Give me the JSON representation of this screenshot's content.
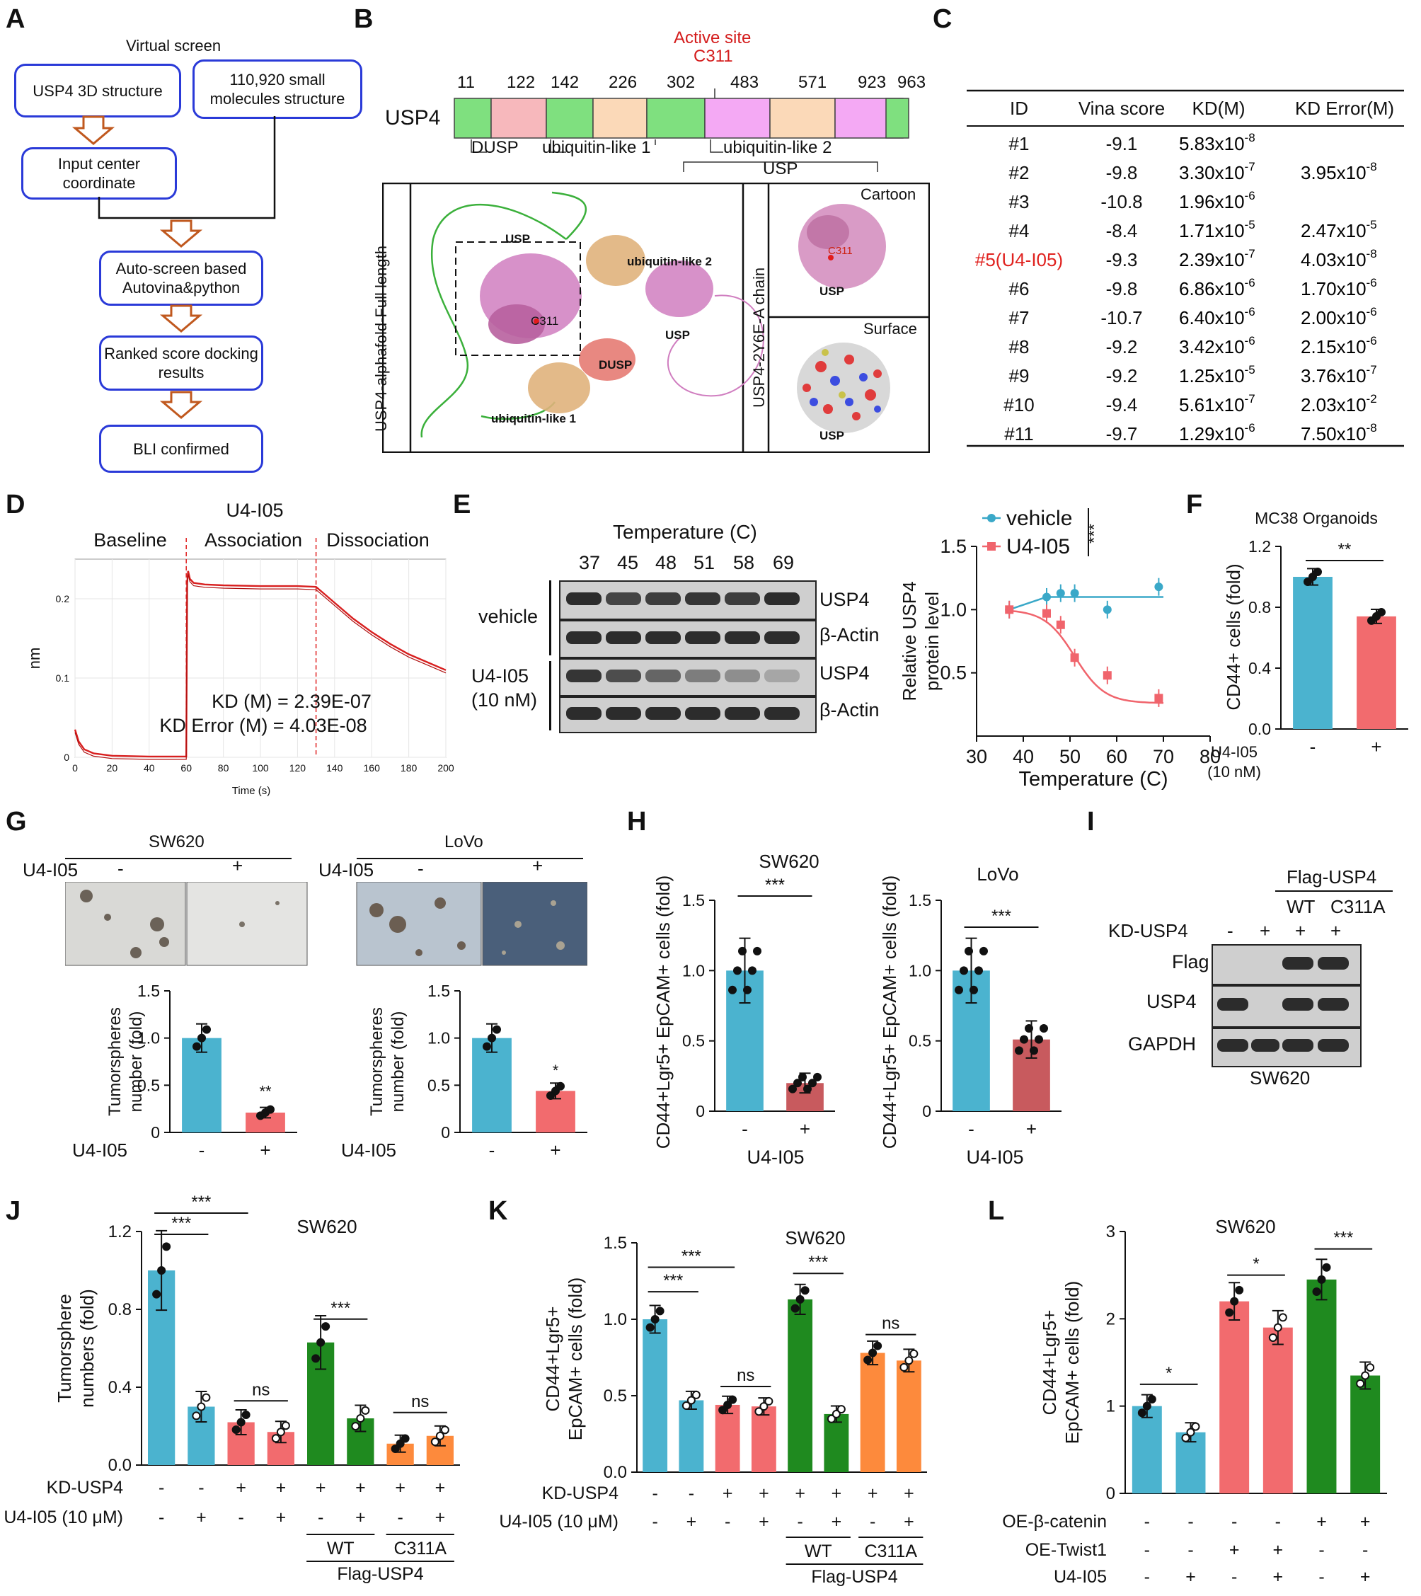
{
  "panels": {
    "A": "A",
    "B": "B",
    "C": "C",
    "D": "D",
    "E": "E",
    "F": "F",
    "G": "G",
    "H": "H",
    "I": "I",
    "J": "J",
    "K": "K",
    "L": "L"
  },
  "panelA": {
    "title": "Virtual screen",
    "box1": "USP4 3D structure",
    "box2": "110,920 small molecules structure",
    "box3": "Input center coordinate",
    "box4": "Auto-screen based Autovina&python",
    "box5": "Ranked score docking results",
    "box6": "BLI confirmed"
  },
  "panelB": {
    "active_site": "Active site",
    "active_res": "C311",
    "protein": "USP4",
    "positions": [
      "11",
      "122",
      "142",
      "226",
      "302",
      "483",
      "571",
      "923",
      "963"
    ],
    "dom_dusp": "DUSP",
    "dom_ubl1": "ubiquitin-like 1",
    "dom_ubl2": "ubiquitin-like 2",
    "dom_usp": "USP",
    "left_vert": "USP4-alphafold-Full length",
    "right_vert": "USP4-2Y6E-A chain",
    "struct_labels": {
      "usp": "USP",
      "ubl2": "ubiquitin-like 2",
      "usp2": "USP",
      "c311": "C311",
      "dusp": "DUSP",
      "ubl1": "ubiquitin-like 1"
    },
    "cartoon": "Cartoon",
    "surface": "Surface",
    "usp_small": "USP",
    "c311_small": "C311"
  },
  "panelC": {
    "headers": [
      "ID",
      "Vina score",
      "KD(M)",
      "KD Error(M)"
    ],
    "rows": [
      {
        "id": "#1",
        "vina": "-9.1",
        "kd": "5.83x10",
        "kd_exp": "-8",
        "err": "",
        "err_exp": ""
      },
      {
        "id": "#2",
        "vina": "-9.8",
        "kd": "3.30x10",
        "kd_exp": "-7",
        "err": "3.95x10",
        "err_exp": "-8"
      },
      {
        "id": "#3",
        "vina": "-10.8",
        "kd": "1.96x10",
        "kd_exp": "-6",
        "err": "",
        "err_exp": ""
      },
      {
        "id": "#4",
        "vina": "-8.4",
        "kd": "1.71x10",
        "kd_exp": "-5",
        "err": "2.47x10",
        "err_exp": "-5"
      },
      {
        "id": "#5(U4-I05)",
        "vina": "-9.3",
        "kd": "2.39x10",
        "kd_exp": "-7",
        "err": "4.03x10",
        "err_exp": "-8"
      },
      {
        "id": "#6",
        "vina": "-9.8",
        "kd": "6.86x10",
        "kd_exp": "-6",
        "err": "1.70x10",
        "err_exp": "-6"
      },
      {
        "id": "#7",
        "vina": "-10.7",
        "kd": "6.40x10",
        "kd_exp": "-6",
        "err": "2.00x10",
        "err_exp": "-6"
      },
      {
        "id": "#8",
        "vina": "-9.2",
        "kd": "3.42x10",
        "kd_exp": "-6",
        "err": "2.15x10",
        "err_exp": "-6"
      },
      {
        "id": "#9",
        "vina": "-9.2",
        "kd": "1.25x10",
        "kd_exp": "-5",
        "err": "3.76x10",
        "err_exp": "-7"
      },
      {
        "id": "#10",
        "vina": "-9.4",
        "kd": "5.61x10",
        "kd_exp": "-7",
        "err": "2.03x10",
        "err_exp": "-2"
      },
      {
        "id": "#11",
        "vina": "-9.7",
        "kd": "1.29x10",
        "kd_exp": "-6",
        "err": "7.50x10",
        "err_exp": "-8"
      }
    ]
  },
  "panelE": {
    "temp_title": "Temperature (C)",
    "temps": [
      "37",
      "45",
      "48",
      "51",
      "58",
      "69"
    ],
    "vehicle": "vehicle",
    "drug": "U4-I05",
    "drug_dose": "(10 nM)",
    "usp4": "USP4",
    "actin": "β-Actin"
  },
  "panelG": {
    "sw620": "SW620",
    "lovo": "LoVo",
    "treat": "U4-I05",
    "minus": "-",
    "plus": "+"
  },
  "panelI": {
    "flag_usp4": "Flag-USP4",
    "wt": "WT",
    "c311a": "C311A",
    "kd_usp4": "KD-USP4",
    "lanes": [
      "-",
      "+",
      "+",
      "+"
    ],
    "flag": "Flag",
    "usp4": "USP4",
    "gapdh": "GAPDH",
    "cell": "SW620"
  },
  "chart_data": [
    {
      "panel": "D",
      "type": "line",
      "title": "U4-I05",
      "phases": [
        "Baseline",
        "Association",
        "Dissociation"
      ],
      "xlabel": "Time (s)",
      "ylabel": "nm",
      "xlim": [
        0,
        200
      ],
      "ylim": [
        0,
        0.25
      ],
      "xticks": [
        0,
        20,
        40,
        60,
        80,
        100,
        120,
        140,
        160,
        180,
        200
      ],
      "yticks": [
        0,
        0.1,
        0.2
      ],
      "ytick_labels": [
        "0",
        "0.1",
        "0.2"
      ],
      "annotation1": "KD (M) = 2.39E-07",
      "annotation2": "KD Error (M) = 4.03E-08",
      "x": [
        0,
        2,
        5,
        10,
        20,
        40,
        60,
        60.5,
        61,
        62,
        64,
        70,
        80,
        100,
        120,
        130,
        135,
        140,
        150,
        160,
        170,
        180,
        190,
        200
      ],
      "y": [
        0.035,
        0.02,
        0.01,
        0.005,
        0.002,
        0.001,
        0.001,
        0.22,
        0.235,
        0.225,
        0.22,
        0.218,
        0.217,
        0.216,
        0.216,
        0.215,
        0.205,
        0.195,
        0.175,
        0.158,
        0.143,
        0.13,
        0.12,
        0.11
      ]
    },
    {
      "panel": "E",
      "type": "scatter",
      "xlabel": "Temperature (C)",
      "ylabel": "Relative USP4 protein level",
      "xlim": [
        30,
        80
      ],
      "ylim": [
        0,
        1.5
      ],
      "xticks": [
        30,
        40,
        50,
        60,
        70,
        80
      ],
      "yticks": [
        0.5,
        1.0,
        1.5
      ],
      "ytick_labels": [
        "0.5",
        "1.0",
        "1.5"
      ],
      "sig": "***",
      "series": [
        {
          "name": "vehicle",
          "color": "#3aa8c8",
          "x": [
            37,
            45,
            48,
            51,
            58,
            69
          ],
          "y": [
            1.0,
            1.1,
            1.13,
            1.13,
            1.0,
            1.18
          ]
        },
        {
          "name": "U4-I05",
          "color": "#f0646c",
          "x": [
            37,
            45,
            48,
            51,
            58,
            69
          ],
          "y": [
            1.0,
            0.97,
            0.88,
            0.62,
            0.48,
            0.3
          ]
        }
      ]
    },
    {
      "panel": "F",
      "type": "bar",
      "title": "MC38 Organoids",
      "ylabel": "CD44+ cells (fold)",
      "ylim": [
        0,
        1.2
      ],
      "yticks": [
        0,
        0.4,
        0.8,
        1.2
      ],
      "ytick_labels": [
        "0.0",
        "0.4",
        "0.8",
        "1.2"
      ],
      "categories": [
        "-",
        "+"
      ],
      "values": [
        1.0,
        0.74
      ],
      "colors": [
        "#4bb3cf",
        "#f26b6e"
      ],
      "sig": "**",
      "treat": "U4-I05",
      "dose": "(10 nM)"
    },
    {
      "panel": "G1",
      "type": "bar",
      "ylabel": "Tumorspheres number (fold)",
      "ylim": [
        0,
        1.5
      ],
      "yticks": [
        0,
        0.5,
        1.0,
        1.5
      ],
      "ytick_labels": [
        "0",
        "0.5",
        "1.0",
        "1.5"
      ],
      "categories": [
        "-",
        "+"
      ],
      "values": [
        1.0,
        0.21
      ],
      "colors": [
        "#4bb3cf",
        "#f26b6e"
      ],
      "sig": "**",
      "treat": "U4-I05"
    },
    {
      "panel": "G2",
      "type": "bar",
      "ylabel": "Tumorspheres number (fold)",
      "ylim": [
        0,
        1.5
      ],
      "yticks": [
        0,
        0.5,
        1.0,
        1.5
      ],
      "ytick_labels": [
        "0",
        "0.5",
        "1.0",
        "1.5"
      ],
      "categories": [
        "-",
        "+"
      ],
      "values": [
        1.0,
        0.44
      ],
      "colors": [
        "#4bb3cf",
        "#f26b6e"
      ],
      "sig": "*",
      "treat": "U4-I05"
    },
    {
      "panel": "H1",
      "type": "bar",
      "title": "SW620",
      "ylabel": "CD44+Lgr5+ EpCAM+ cells (fold)",
      "ylim": [
        0,
        1.5
      ],
      "yticks": [
        0,
        0.5,
        1.0,
        1.5
      ],
      "ytick_labels": [
        "0",
        "0.5",
        "1.0",
        "1.5"
      ],
      "categories": [
        "-",
        "+"
      ],
      "values": [
        1.0,
        0.2
      ],
      "colors": [
        "#4bb3cf",
        "#c85a5e"
      ],
      "sig": "***",
      "treat": "U4-I05"
    },
    {
      "panel": "H2",
      "type": "bar",
      "title": "LoVo",
      "ylabel": "CD44+Lgr5+ EpCAM+ cells (fold)",
      "ylim": [
        0,
        1.5
      ],
      "yticks": [
        0,
        0.5,
        1.0,
        1.5
      ],
      "ytick_labels": [
        "0",
        "0.5",
        "1.0",
        "1.5"
      ],
      "categories": [
        "-",
        "+"
      ],
      "values": [
        1.0,
        0.51
      ],
      "colors": [
        "#4bb3cf",
        "#c85a5e"
      ],
      "sig": "***",
      "treat": "U4-I05"
    },
    {
      "panel": "J",
      "type": "bar",
      "title": "SW620",
      "ylabel": "Tumorsphere numbers (fold)",
      "ylim": [
        0,
        1.2
      ],
      "yticks": [
        0,
        0.4,
        0.8,
        1.2
      ],
      "ytick_labels": [
        "0.0",
        "0.4",
        "0.8",
        "1.2"
      ],
      "values": [
        1.0,
        0.3,
        0.22,
        0.17,
        0.63,
        0.24,
        0.11,
        0.15
      ],
      "colors": [
        "#4bb3cf",
        "#4bb3cf",
        "#f26b6e",
        "#f26b6e",
        "#1f8a1f",
        "#1f8a1f",
        "#fd8a3c",
        "#fd8a3c"
      ],
      "sigs": [
        {
          "a": 0,
          "b": 1,
          "t": "***"
        },
        {
          "a": 0,
          "b": 2,
          "t": "***"
        },
        {
          "a": 2,
          "b": 3,
          "t": "ns"
        },
        {
          "a": 4,
          "b": 5,
          "t": "***"
        },
        {
          "a": 6,
          "b": 7,
          "t": "ns"
        }
      ],
      "row1_label": "KD-USP4",
      "row1": [
        "-",
        "-",
        "+",
        "+",
        "+",
        "+",
        "+",
        "+"
      ],
      "row2_label": "U4-I05 (10 μM)",
      "row2": [
        "-",
        "+",
        "-",
        "+",
        "-",
        "+",
        "-",
        "+"
      ],
      "group1": "WT",
      "group2": "C311A",
      "group_label": "Flag-USP4"
    },
    {
      "panel": "K",
      "type": "bar",
      "title": "SW620",
      "ylabel": "CD44+Lgr5+ EpCAM+ cells (fold)",
      "ylim": [
        0,
        1.5
      ],
      "yticks": [
        0,
        0.5,
        1.0,
        1.5
      ],
      "ytick_labels": [
        "0.0",
        "0.5",
        "1.0",
        "1.5"
      ],
      "values": [
        1.0,
        0.47,
        0.44,
        0.43,
        1.13,
        0.38,
        0.78,
        0.73
      ],
      "colors": [
        "#4bb3cf",
        "#4bb3cf",
        "#f26b6e",
        "#f26b6e",
        "#1f8a1f",
        "#1f8a1f",
        "#fd8a3c",
        "#fd8a3c"
      ],
      "sigs": [
        {
          "a": 0,
          "b": 1,
          "t": "***"
        },
        {
          "a": 0,
          "b": 2,
          "t": "***"
        },
        {
          "a": 2,
          "b": 3,
          "t": "ns"
        },
        {
          "a": 4,
          "b": 5,
          "t": "***"
        },
        {
          "a": 6,
          "b": 7,
          "t": "ns"
        }
      ],
      "row1_label": "KD-USP4",
      "row1": [
        "-",
        "-",
        "+",
        "+",
        "+",
        "+",
        "+",
        "+"
      ],
      "row2_label": "U4-I05 (10 μM)",
      "row2": [
        "-",
        "+",
        "-",
        "+",
        "-",
        "+",
        "-",
        "+"
      ],
      "group1": "WT",
      "group2": "C311A",
      "group_label": "Flag-USP4"
    },
    {
      "panel": "L",
      "type": "bar",
      "title": "SW620",
      "ylabel": "CD44+Lgr5+ EpCAM+ cells (fold)",
      "ylim": [
        0,
        3
      ],
      "yticks": [
        0,
        1,
        2,
        3
      ],
      "ytick_labels": [
        "0",
        "1",
        "2",
        "3"
      ],
      "values": [
        1.0,
        0.7,
        2.2,
        1.9,
        2.45,
        1.35
      ],
      "colors": [
        "#4bb3cf",
        "#4bb3cf",
        "#f26b6e",
        "#f26b6e",
        "#1f8a1f",
        "#1f8a1f"
      ],
      "sigs": [
        {
          "a": 0,
          "b": 1,
          "t": "*"
        },
        {
          "a": 2,
          "b": 3,
          "t": "*"
        },
        {
          "a": 4,
          "b": 5,
          "t": "***"
        }
      ],
      "row1_label": "OE-β-catenin",
      "row1": [
        "-",
        "-",
        "-",
        "-",
        "+",
        "+"
      ],
      "row2_label": "OE-Twist1",
      "row2": [
        "-",
        "-",
        "+",
        "+",
        "-",
        "-"
      ],
      "row3_label": "U4-I05",
      "row3": [
        "-",
        "+",
        "-",
        "+",
        "-",
        "+"
      ]
    }
  ]
}
